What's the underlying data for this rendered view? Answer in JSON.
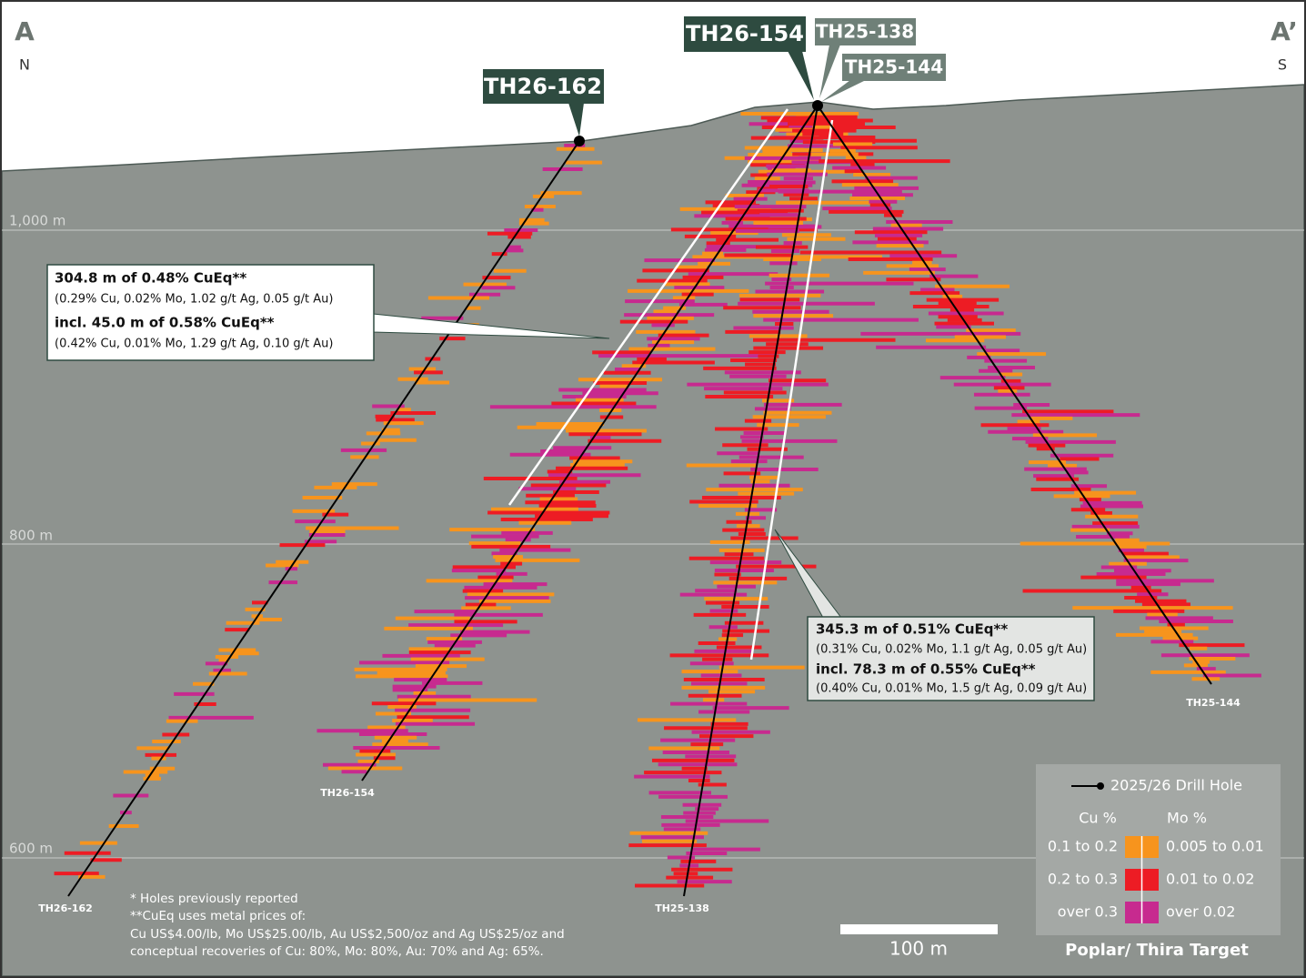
{
  "section": {
    "start_label": "A",
    "start_direction": "N",
    "end_label": "A’",
    "end_direction": "S"
  },
  "holes": [
    {
      "label": "TH26-162",
      "end_label": "TH26-162"
    },
    {
      "label": "TH26-154",
      "end_label": "TH26-154"
    },
    {
      "label": "TH25-138",
      "end_label": "TH25-138"
    },
    {
      "label": "TH25-144",
      "end_label": "TH25-144"
    }
  ],
  "elevations": [
    "1,000 m",
    "800 m",
    "600 m"
  ],
  "intercepts": [
    {
      "lines": [
        "304.8 m of 0.48% CuEq**",
        "(0.29% Cu, 0.02% Mo, 1.02 g/t Ag, 0.05 g/t Au)",
        "incl. 45.0 m of 0.58% CuEq**",
        "(0.42% Cu, 0.01% Mo, 1.29 g/t Ag, 0.10 g/t Au)"
      ]
    },
    {
      "lines": [
        "345.3 m of 0.51% CuEq**",
        "(0.31% Cu, 0.02% Mo, 1.1 g/t Ag, 0.05 g/t Au)",
        "incl. 78.3 m of 0.55% CuEq**",
        "(0.40% Cu, 0.01% Mo, 1.5 g/t Ag, 0.09 g/t Au)"
      ]
    }
  ],
  "legend": {
    "drill_hole": "2025/26 Drill Hole",
    "cu_header": "Cu %",
    "mo_header": "Mo %",
    "classes": [
      {
        "cu": "0.1 to 0.2",
        "mo": "0.005 to 0.01"
      },
      {
        "cu": "0.2 to 0.3",
        "mo": "0.01 to 0.02"
      },
      {
        "cu": "over 0.3",
        "mo": "over 0.02"
      }
    ],
    "target": "Poplar/ Thira Target"
  },
  "notes": [
    "* Holes previously reported",
    "**CuEq uses metal prices of:",
    "Cu US$4.00/lb, Mo US$25.00/lb, Au US$2,500/oz and Ag US$25/oz and",
    "conceptual recoveries of Cu: 80%, Mo: 80%, Au: 70% and Ag: 65%."
  ],
  "scale_bar": "100 m"
}
